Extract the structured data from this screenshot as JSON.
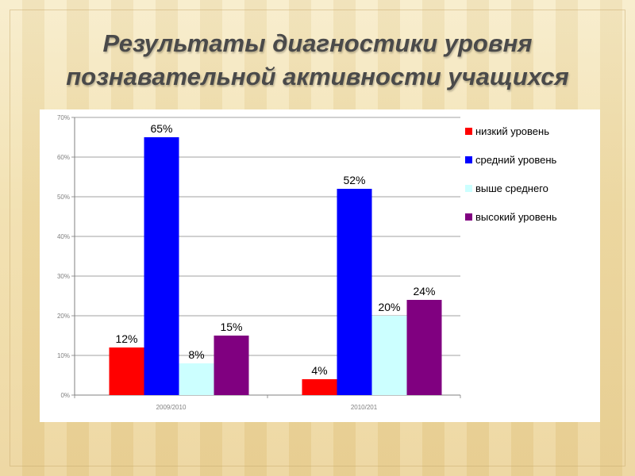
{
  "slide": {
    "title_line1": "Результаты диагностики уровня",
    "title_line2": "познавательной активности учащихся"
  },
  "chart_data": {
    "type": "bar",
    "categories": [
      "2009/2010",
      "2010/201"
    ],
    "series": [
      {
        "name": "низкий уровень",
        "color": "#ff0000",
        "values": [
          12,
          4
        ]
      },
      {
        "name": "средний уровень",
        "color": "#0000ff",
        "values": [
          65,
          52
        ]
      },
      {
        "name": "выше среднего",
        "color": "#ccffff",
        "values": [
          8,
          20
        ]
      },
      {
        "name": "высокий уровень",
        "color": "#800080",
        "values": [
          15,
          24
        ]
      }
    ],
    "data_labels": [
      [
        "12%",
        "4%"
      ],
      [
        "65%",
        "52%"
      ],
      [
        "8%",
        "20%"
      ],
      [
        "15%",
        "24%"
      ]
    ],
    "yticks": [
      "0%",
      "10%",
      "20%",
      "30%",
      "40%",
      "50%",
      "60%",
      "70%"
    ],
    "ylim": [
      0,
      70
    ],
    "grid": true,
    "legend_position": "right"
  }
}
